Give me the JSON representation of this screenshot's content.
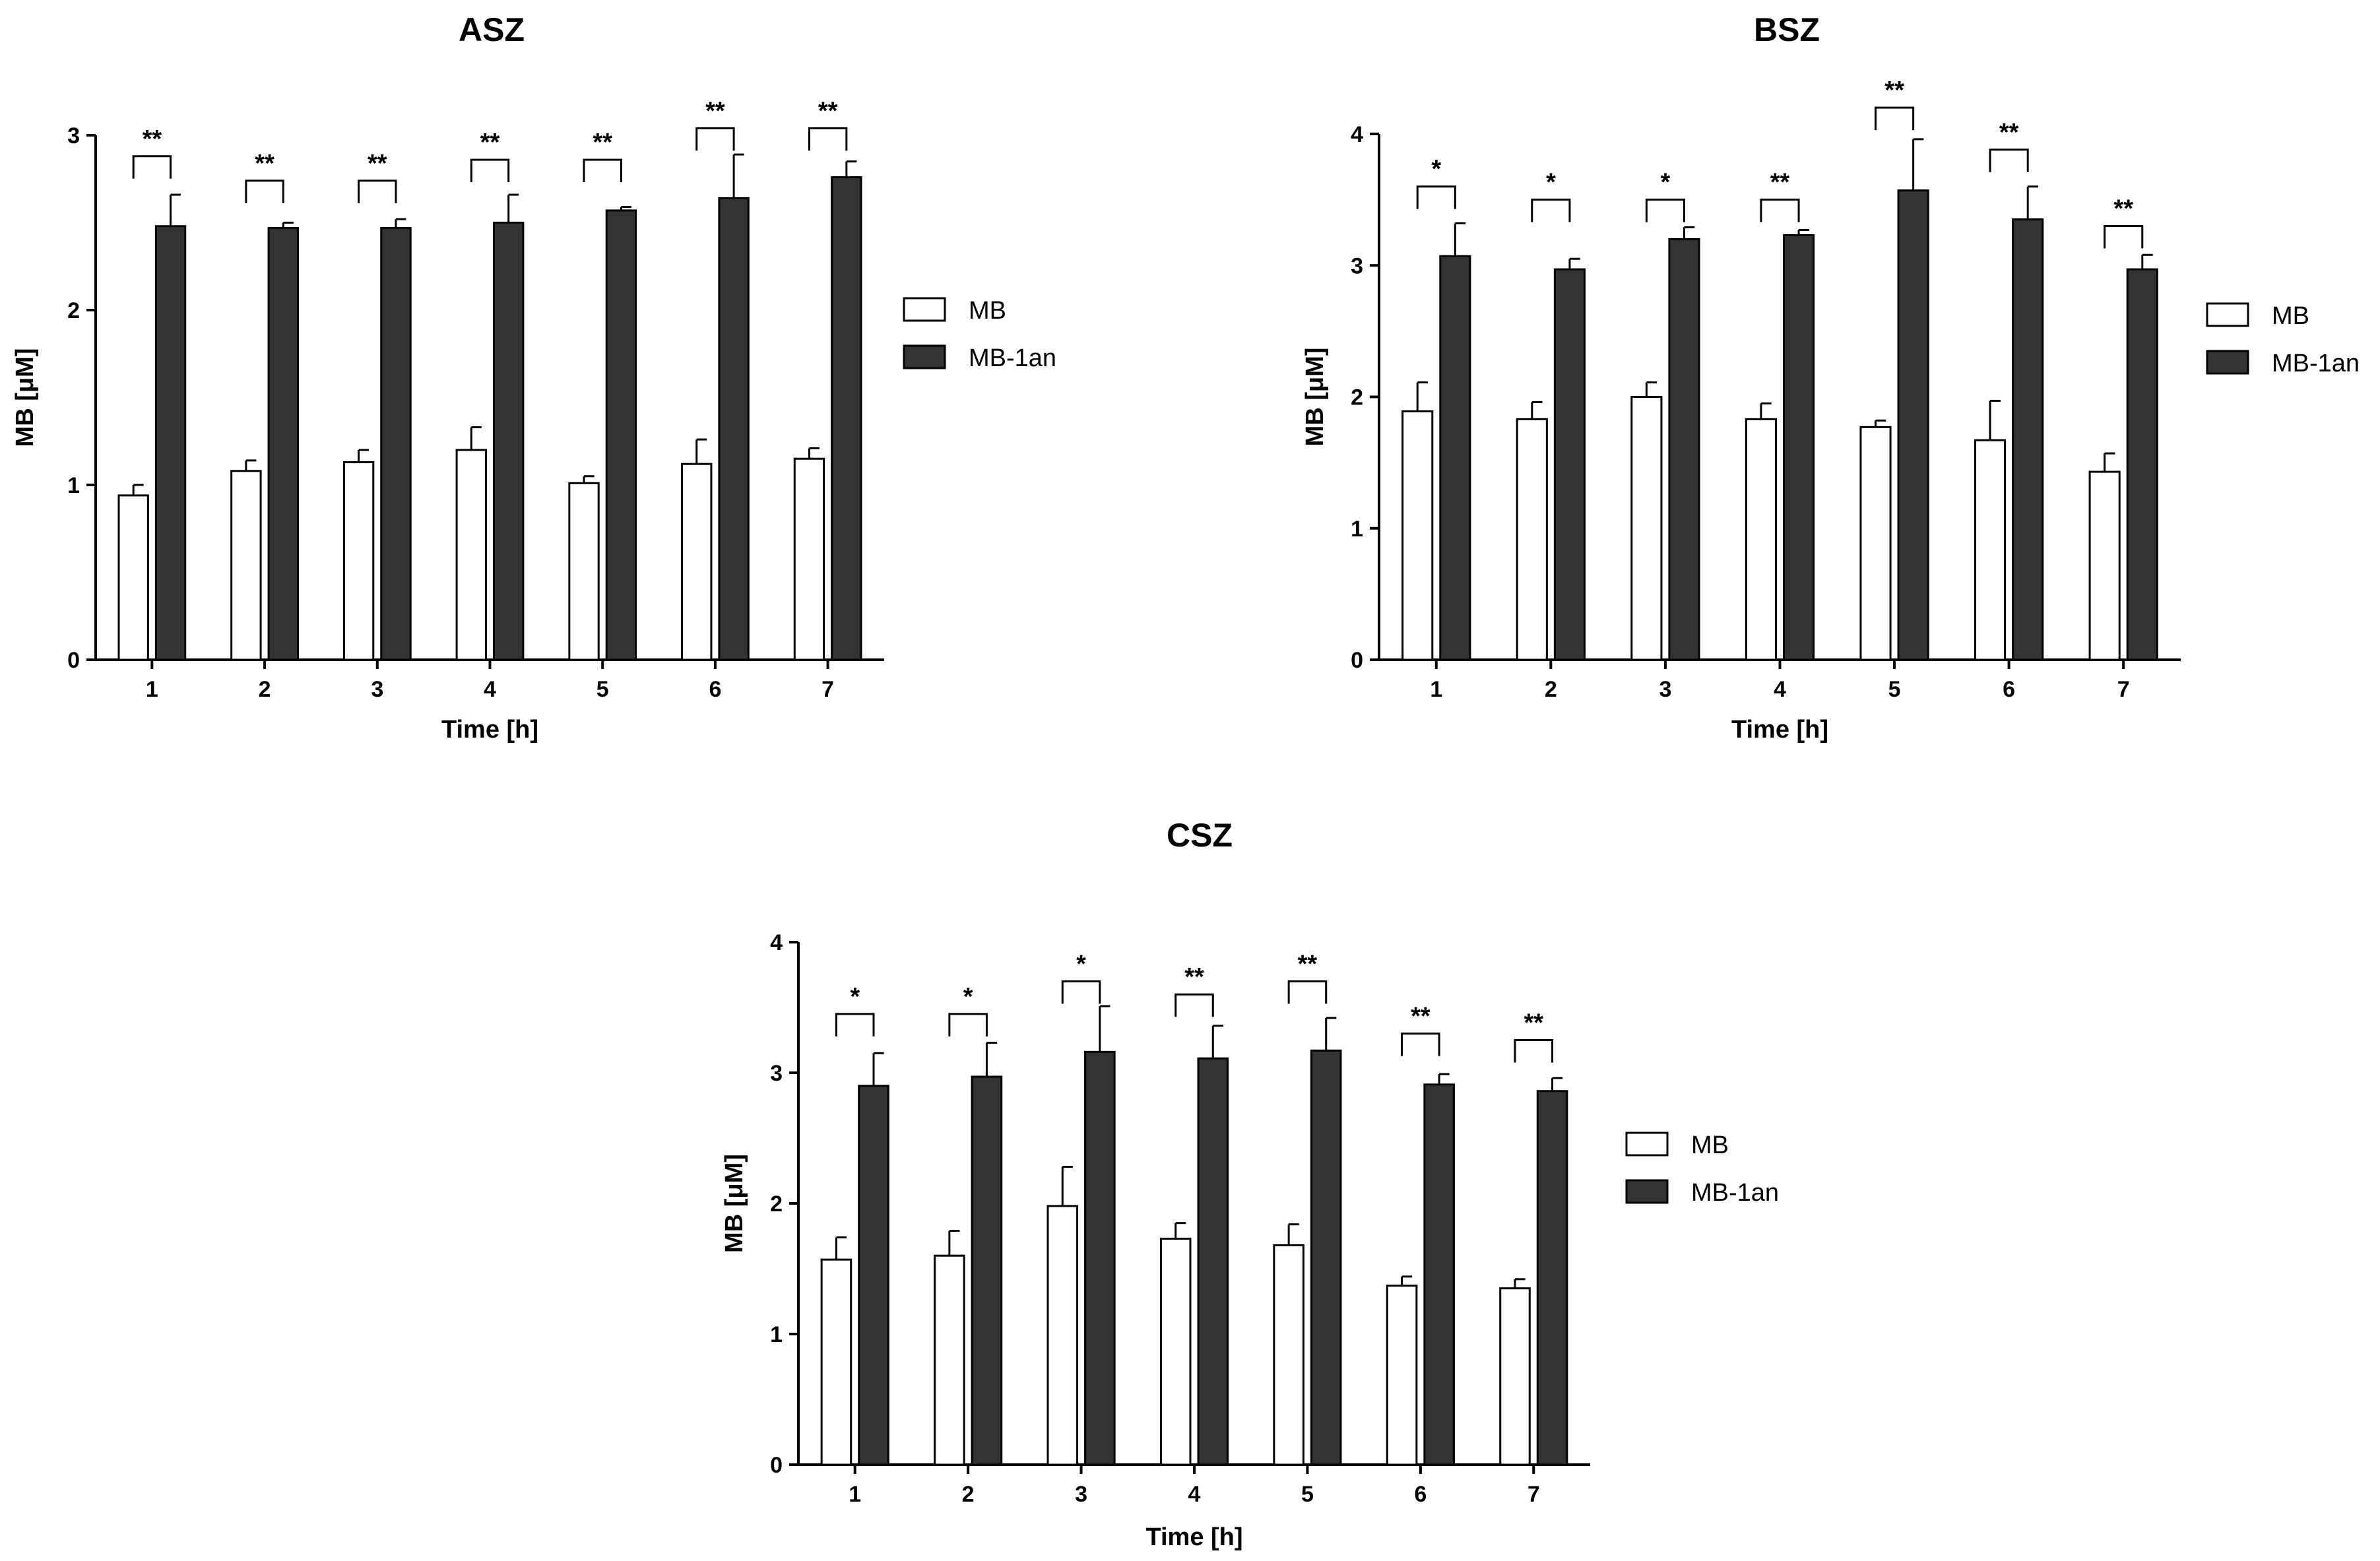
{
  "chart_data": [
    {
      "type": "bar",
      "title": "ASZ",
      "xlabel": "Time [h]",
      "ylabel": "MB [μM]",
      "ylim": [
        0,
        3
      ],
      "yticks": [
        "0",
        "1",
        "2",
        "3"
      ],
      "categories": [
        "1",
        "2",
        "3",
        "4",
        "5",
        "6",
        "7"
      ],
      "series": [
        {
          "name": "MB",
          "color": "#ffffff",
          "values": [
            0.94,
            1.08,
            1.13,
            1.2,
            1.01,
            1.12,
            1.15
          ],
          "errors": [
            0.06,
            0.06,
            0.07,
            0.13,
            0.04,
            0.14,
            0.06
          ]
        },
        {
          "name": "MB-1an",
          "color": "#333333",
          "values": [
            2.48,
            2.47,
            2.47,
            2.5,
            2.57,
            2.64,
            2.76
          ],
          "errors": [
            0.18,
            0.03,
            0.05,
            0.16,
            0.02,
            0.25,
            0.09
          ]
        }
      ],
      "significance": [
        "**",
        "**",
        "**",
        "**",
        "**",
        "**",
        "**"
      ],
      "bracket_levels": [
        2.88,
        2.74,
        2.74,
        2.86,
        2.86,
        3.04,
        3.04
      ],
      "legend": "right",
      "grid": false
    },
    {
      "type": "bar",
      "title": "BSZ",
      "xlabel": "Time [h]",
      "ylabel": "MB [μM]",
      "ylim": [
        0,
        4
      ],
      "yticks": [
        "0",
        "1",
        "2",
        "3",
        "4"
      ],
      "categories": [
        "1",
        "2",
        "3",
        "4",
        "5",
        "6",
        "7"
      ],
      "series": [
        {
          "name": "MB",
          "color": "#ffffff",
          "values": [
            1.89,
            1.83,
            2.0,
            1.83,
            1.77,
            1.67,
            1.43
          ],
          "errors": [
            0.22,
            0.13,
            0.11,
            0.12,
            0.05,
            0.3,
            0.14
          ]
        },
        {
          "name": "MB-1an",
          "color": "#333333",
          "values": [
            3.07,
            2.97,
            3.2,
            3.23,
            3.57,
            3.35,
            2.97
          ],
          "errors": [
            0.25,
            0.08,
            0.09,
            0.04,
            0.39,
            0.25,
            0.11
          ]
        }
      ],
      "significance": [
        "*",
        "*",
        "*",
        "**",
        "**",
        "**",
        "**"
      ],
      "bracket_levels": [
        3.6,
        3.5,
        3.5,
        3.5,
        4.2,
        3.88,
        3.3
      ],
      "legend": "right",
      "grid": false
    },
    {
      "type": "bar",
      "title": "CSZ",
      "xlabel": "Time [h]",
      "ylabel": "MB [μM]",
      "ylim": [
        0,
        4
      ],
      "yticks": [
        "0",
        "1",
        "2",
        "3",
        "4"
      ],
      "categories": [
        "1",
        "2",
        "3",
        "4",
        "5",
        "6",
        "7"
      ],
      "series": [
        {
          "name": "MB",
          "color": "#ffffff",
          "values": [
            1.57,
            1.6,
            1.98,
            1.73,
            1.68,
            1.37,
            1.35
          ],
          "errors": [
            0.17,
            0.19,
            0.3,
            0.12,
            0.16,
            0.07,
            0.07
          ]
        },
        {
          "name": "MB-1an",
          "color": "#333333",
          "values": [
            2.9,
            2.97,
            3.16,
            3.11,
            3.17,
            2.91,
            2.86
          ],
          "errors": [
            0.25,
            0.26,
            0.35,
            0.25,
            0.25,
            0.08,
            0.1
          ]
        }
      ],
      "significance": [
        "*",
        "*",
        "*",
        "**",
        "**",
        "**",
        "**"
      ],
      "bracket_levels": [
        3.45,
        3.45,
        3.7,
        3.6,
        3.7,
        3.3,
        3.25
      ],
      "legend": "right",
      "grid": false
    }
  ]
}
